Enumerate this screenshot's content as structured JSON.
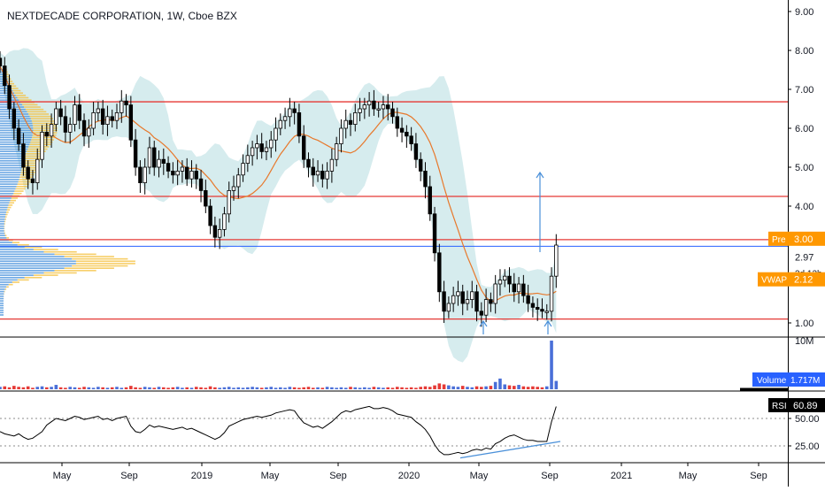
{
  "header": {
    "title": "NEXTDECADE CORPORATION, 1W, Cboe BZX"
  },
  "colors": {
    "up": "#26a69a",
    "down": "#000000",
    "candle_body_up": "#ffffff",
    "resistance": "#e53935",
    "band_fill": "#cfe9eb",
    "vwap": "#e8782b",
    "price_line": "#2962ff",
    "arrow": "#4a90d9",
    "volume_up": "#4a6fd8",
    "volume_down": "#e53935",
    "profile_blue": "#3d8bd9",
    "profile_yellow": "#f5c242",
    "rsi_line": "#000000",
    "rsi_trend": "#4a90d9",
    "pre_badge": "#ff9800",
    "vwap_badge": "#ff9800",
    "volume_badge": "#2962ff",
    "rsi_badge": "#000000"
  },
  "chart_data": [
    {
      "type": "candlestick",
      "panel": "price",
      "y_axis_ticks": [
        "9.00",
        "8.00",
        "7.00",
        "6.00",
        "5.00",
        "4.00",
        "3.00",
        "2.97",
        "1.00"
      ],
      "ylim": [
        0.75,
        9.25
      ],
      "x_axis_ticks": [
        "May",
        "Sep",
        "2019",
        "May",
        "Sep",
        "2020",
        "May",
        "Sep",
        "2021",
        "May",
        "Sep"
      ],
      "resistance_levels": [
        6.68,
        4.25,
        3.14,
        1.1
      ],
      "current_price": 2.97,
      "pre_label": "Pre",
      "pre_value": "3.00",
      "countdown": "3d 12h",
      "vwap_label": "VWAP",
      "vwap_value": "2.12",
      "close_series": [
        7.6,
        7.1,
        6.5,
        6.0,
        5.6,
        5.0,
        4.7,
        4.6,
        5.2,
        5.9,
        5.8,
        6.1,
        6.5,
        6.3,
        5.9,
        6.1,
        6.6,
        6.2,
        5.8,
        6.0,
        6.4,
        6.5,
        6.1,
        6.3,
        6.2,
        6.4,
        6.7,
        6.6,
        5.7,
        5.0,
        4.6,
        5.0,
        5.5,
        5.0,
        5.2,
        5.1,
        4.9,
        4.8,
        4.9,
        5.0,
        4.7,
        4.9,
        4.7,
        4.4,
        4.0,
        3.5,
        3.2,
        3.4,
        3.8,
        4.4,
        4.5,
        4.8,
        5.1,
        5.3,
        5.5,
        5.6,
        5.4,
        5.5,
        5.7,
        6.0,
        6.2,
        6.3,
        6.5,
        6.4,
        5.8,
        5.2,
        5.0,
        4.8,
        4.9,
        4.7,
        4.9,
        5.2,
        5.6,
        6.0,
        6.2,
        6.1,
        6.4,
        6.5,
        6.6,
        6.7,
        6.5,
        6.5,
        6.6,
        6.5,
        6.3,
        6.0,
        5.9,
        5.8,
        5.6,
        5.2,
        4.9,
        4.5,
        3.8,
        2.8,
        1.8,
        1.3,
        1.5,
        1.7,
        1.8,
        1.5,
        1.6,
        1.8,
        1.3,
        1.2,
        1.6,
        1.5,
        2.0,
        2.1,
        2.2,
        2.0,
        1.8,
        2.0,
        1.7,
        1.5,
        1.4,
        1.35,
        1.3,
        1.3,
        2.2,
        3.0
      ],
      "volume_ylim": [
        0,
        10
      ],
      "volume_tick": "10M",
      "volume_label": "Volume",
      "volume_value": "1.717M",
      "volume_series": [
        0.5,
        0.6,
        0.4,
        0.7,
        0.5,
        0.4,
        0.6,
        0.3,
        0.5,
        0.6,
        0.4,
        0.5,
        0.9,
        0.4,
        0.3,
        0.5,
        0.4,
        0.3,
        0.5,
        0.4,
        0.3,
        0.5,
        0.4,
        0.3,
        0.4,
        0.5,
        0.3,
        0.4,
        0.7,
        0.4,
        0.3,
        0.5,
        0.4,
        0.3,
        0.5,
        0.4,
        0.3,
        0.4,
        0.5,
        0.3,
        0.4,
        0.3,
        0.5,
        0.4,
        0.3,
        0.6,
        0.4,
        0.3,
        0.4,
        0.5,
        0.3,
        0.4,
        0.3,
        0.4,
        0.5,
        0.4,
        0.3,
        0.4,
        0.5,
        0.3,
        0.4,
        0.3,
        0.5,
        0.4,
        0.3,
        0.4,
        0.5,
        0.3,
        0.4,
        0.3,
        0.5,
        0.4,
        0.3,
        0.4,
        0.3,
        0.5,
        0.4,
        0.3,
        0.4,
        0.3,
        0.5,
        0.4,
        0.3,
        0.4,
        0.3,
        0.5,
        0.4,
        0.3,
        0.4,
        0.3,
        0.5,
        0.6,
        0.5,
        0.8,
        1.2,
        1.0,
        0.8,
        0.6,
        0.5,
        0.7,
        0.5,
        0.4,
        0.6,
        0.5,
        0.6,
        0.7,
        1.5,
        2.2,
        1.0,
        0.8,
        0.7,
        0.9,
        0.6,
        0.5,
        0.6,
        0.5,
        0.4,
        0.6,
        10.0,
        1.717
      ],
      "rsi_ticks": [
        "50.00",
        "25.00"
      ],
      "rsi_ylim": [
        10,
        75
      ],
      "rsi_label": "RSI",
      "rsi_value": "60.89",
      "rsi_series": [
        38,
        36,
        35,
        34,
        36,
        33,
        31,
        32,
        35,
        38,
        44,
        47,
        50,
        49,
        48,
        50,
        52,
        51,
        49,
        50,
        51,
        52,
        49,
        50,
        48,
        50,
        51,
        52,
        43,
        38,
        37,
        40,
        44,
        42,
        43,
        42,
        41,
        40,
        41,
        42,
        40,
        41,
        39,
        37,
        35,
        33,
        31,
        33,
        37,
        43,
        45,
        47,
        49,
        50,
        51,
        52,
        51,
        52,
        53,
        55,
        56,
        57,
        58,
        57,
        51,
        46,
        44,
        42,
        43,
        41,
        44,
        47,
        51,
        55,
        57,
        56,
        58,
        59,
        60,
        61,
        59,
        59,
        60,
        59,
        57,
        54,
        53,
        52,
        51,
        47,
        44,
        40,
        34,
        26,
        20,
        17,
        17,
        18,
        19,
        18,
        19,
        21,
        22,
        21,
        23,
        22,
        27,
        29,
        32,
        34,
        35,
        33,
        31,
        30,
        30,
        29,
        29,
        29,
        47,
        60.89
      ]
    }
  ]
}
